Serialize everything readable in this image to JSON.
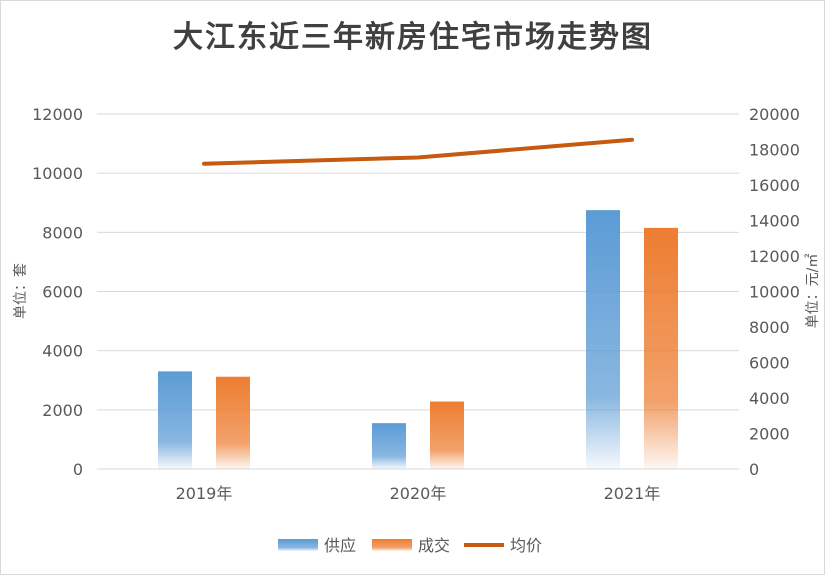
{
  "chart_data": {
    "type": "bar",
    "title": "大江东近三年新房住宅市场走势图",
    "categories": [
      "2019年",
      "2020年",
      "2021年"
    ],
    "series": [
      {
        "name": "供应",
        "type": "bar",
        "axis": "left",
        "color": "#5b9bd5",
        "values": [
          3300,
          1550,
          8750
        ]
      },
      {
        "name": "成交",
        "type": "bar",
        "axis": "left",
        "color": "#ed7d31",
        "values": [
          3120,
          2280,
          8150
        ]
      },
      {
        "name": "均价",
        "type": "line",
        "axis": "right",
        "color": "#c55a11",
        "values": [
          17200,
          17550,
          18550
        ]
      }
    ],
    "y_left": {
      "label": "单位：套",
      "min": 0,
      "max": 12000,
      "ticks": [
        "0",
        "2000",
        "4000",
        "6000",
        "8000",
        "10000",
        "12000"
      ]
    },
    "y_right": {
      "label": "单位：元/㎡",
      "min": 0,
      "max": 20000,
      "ticks": [
        "0",
        "2000",
        "4000",
        "6000",
        "8000",
        "10000",
        "12000",
        "14000",
        "16000",
        "18000",
        "20000"
      ]
    },
    "grid": true,
    "legend_position": "bottom"
  }
}
